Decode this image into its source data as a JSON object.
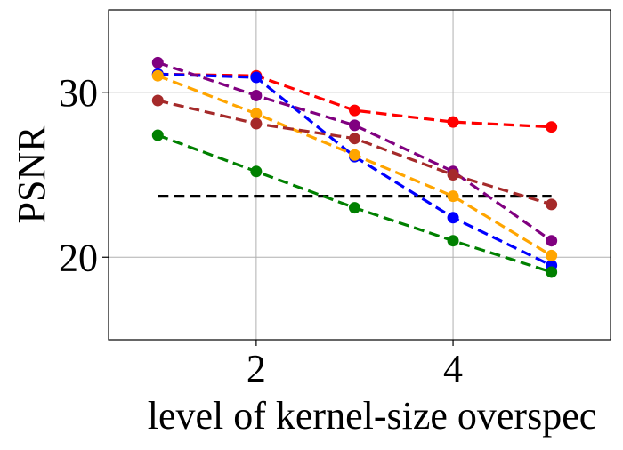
{
  "chart_data": {
    "type": "line",
    "title": "",
    "xlabel": "level of kernel-size overspec",
    "ylabel": "PSNR",
    "xlim": [
      0.5,
      5.6
    ],
    "ylim": [
      15.0,
      35.0
    ],
    "xticks": [
      2,
      4
    ],
    "yticks": [
      20,
      30
    ],
    "grid": true,
    "legend": "none",
    "baseline": {
      "name": "reference",
      "value": 23.7,
      "x_range": [
        1,
        5
      ],
      "color": "#000000",
      "style": "dashed"
    },
    "x": [
      1,
      2,
      3,
      4,
      5
    ],
    "series": [
      {
        "name": "red",
        "color": "#ff0000",
        "values": [
          31.1,
          31.0,
          28.9,
          28.2,
          27.9
        ]
      },
      {
        "name": "blue",
        "color": "#0000ff",
        "values": [
          31.1,
          30.9,
          26.1,
          22.4,
          19.5
        ]
      },
      {
        "name": "purple",
        "color": "#800080",
        "values": [
          31.8,
          29.8,
          28.0,
          25.2,
          21.0
        ]
      },
      {
        "name": "orange",
        "color": "#ffa500",
        "values": [
          31.0,
          28.7,
          26.2,
          23.7,
          20.1
        ]
      },
      {
        "name": "brown",
        "color": "#a52a2a",
        "values": [
          29.5,
          28.1,
          27.2,
          25.0,
          23.2
        ]
      },
      {
        "name": "green",
        "color": "#008000",
        "values": [
          27.4,
          25.2,
          23.0,
          21.0,
          19.1
        ]
      }
    ]
  }
}
